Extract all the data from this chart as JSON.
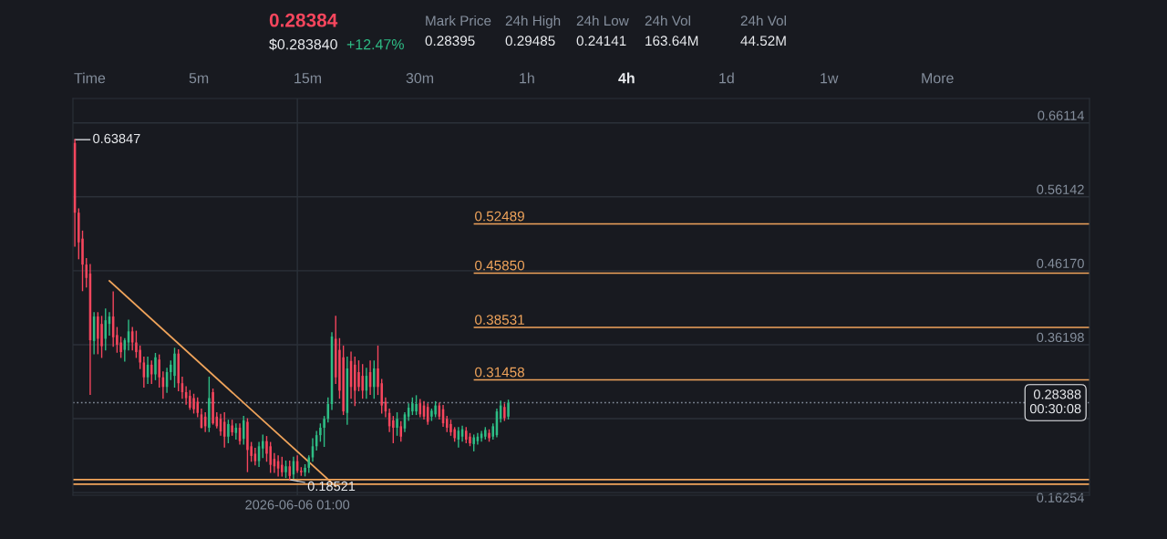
{
  "chart_data": {
    "type": "candlestick",
    "annotations": [
      "0.28384",
      "$0.283840",
      "+12.47%",
      "Mark Price",
      "0.28395",
      "24h High",
      "0.29485",
      "24h Low",
      "0.24141",
      "24h Vol",
      "163.64M",
      "24h Vol",
      "44.52M",
      "Time",
      "5m",
      "15m",
      "30m",
      "1h",
      "4h",
      "1d",
      "1w",
      "More",
      "0.63847",
      "0.18521"
    ],
    "categories": [
      null,
      null,
      null,
      null,
      null,
      null,
      null,
      null,
      null,
      null,
      null,
      null,
      null,
      null,
      null,
      null,
      null,
      null,
      null,
      null,
      null,
      null,
      null,
      null,
      null,
      null,
      null,
      null,
      null,
      null,
      null,
      null,
      null,
      null,
      null,
      null,
      null,
      null,
      null,
      null,
      null,
      null,
      null,
      null,
      null,
      null,
      null,
      null,
      null,
      null,
      null,
      null,
      null,
      null,
      null,
      null,
      null,
      null,
      "2026-06-06 01:00",
      null,
      null,
      null,
      null,
      null,
      null,
      null,
      null,
      null,
      null,
      null,
      null,
      null,
      null,
      null,
      null,
      null,
      null,
      null,
      null,
      null,
      null,
      null,
      null,
      null,
      null,
      null,
      null,
      null,
      null,
      null,
      null,
      null,
      null,
      null,
      null,
      null,
      null,
      null,
      null,
      null,
      null,
      null,
      null,
      null,
      null,
      null,
      null,
      null,
      null,
      null,
      null,
      null,
      null,
      null,
      null,
      null,
      null,
      null,
      null,
      null,
      null,
      null,
      null,
      null,
      null,
      null,
      null,
      null,
      null,
      null,
      null,
      null,
      null,
      null,
      null,
      null,
      null,
      null,
      null,
      null,
      null,
      null,
      null,
      null,
      null,
      null,
      null,
      null,
      null,
      null,
      null,
      null,
      null,
      null,
      null,
      null,
      null,
      null,
      null,
      null,
      null,
      null,
      null,
      null,
      null,
      null,
      null,
      null,
      null,
      null,
      null,
      null,
      null,
      null,
      null,
      null,
      null,
      null,
      null,
      null,
      null,
      null,
      null,
      null,
      null,
      null,
      null,
      null,
      null,
      null,
      null,
      null,
      null,
      null,
      null,
      null,
      null,
      null,
      null,
      null,
      null,
      null,
      null,
      null,
      null,
      null,
      null,
      null,
      null,
      null,
      null,
      null,
      null,
      null,
      null,
      null,
      null,
      null,
      null,
      null,
      null,
      null,
      null,
      null,
      null,
      null,
      null,
      null,
      null,
      null,
      null,
      null,
      null,
      null,
      null,
      null,
      null,
      null,
      null,
      null,
      null,
      null,
      null,
      null,
      null,
      null,
      null,
      null,
      null,
      null,
      null,
      null,
      null,
      null,
      null,
      null,
      null,
      null,
      null,
      null,
      null,
      null,
      null,
      null,
      null
    ],
    "ohlc": [
      [
        0.634,
        0.63847,
        0.495,
        0.54
      ],
      [
        0.54,
        0.545,
        0.478,
        0.5
      ],
      [
        0.505,
        0.515,
        0.435,
        0.47
      ],
      [
        0.47,
        0.478,
        0.44,
        0.452
      ],
      [
        0.458,
        0.47,
        0.295,
        0.368
      ],
      [
        0.367,
        0.405,
        0.35,
        0.4
      ],
      [
        0.4,
        0.405,
        0.35,
        0.37
      ],
      [
        0.39,
        0.4,
        0.345,
        0.36
      ],
      [
        0.37,
        0.41,
        0.355,
        0.395
      ],
      [
        0.39,
        0.405,
        0.375,
        0.4
      ],
      [
        0.4,
        0.433,
        0.36,
        0.372
      ],
      [
        0.375,
        0.385,
        0.352,
        0.362
      ],
      [
        0.365,
        0.372,
        0.345,
        0.352
      ],
      [
        0.355,
        0.37,
        0.34,
        0.368
      ],
      [
        0.365,
        0.395,
        0.355,
        0.38
      ],
      [
        0.38,
        0.385,
        0.355,
        0.365
      ],
      [
        0.365,
        0.38,
        0.345,
        0.352
      ],
      [
        0.355,
        0.36,
        0.33,
        0.338
      ],
      [
        0.338,
        0.345,
        0.305,
        0.318
      ],
      [
        0.318,
        0.345,
        0.31,
        0.335
      ],
      [
        0.335,
        0.34,
        0.31,
        0.322
      ],
      [
        0.322,
        0.35,
        0.315,
        0.345
      ],
      [
        0.342,
        0.348,
        0.305,
        0.318
      ],
      [
        0.318,
        0.325,
        0.29,
        0.305
      ],
      [
        0.305,
        0.33,
        0.298,
        0.325
      ],
      [
        0.325,
        0.34,
        0.315,
        0.335
      ],
      [
        0.32,
        0.357,
        0.305,
        0.35
      ],
      [
        0.35,
        0.355,
        0.3,
        0.31
      ],
      [
        0.31,
        0.318,
        0.29,
        0.298
      ],
      [
        0.298,
        0.305,
        0.282,
        0.29
      ],
      [
        0.293,
        0.3,
        0.275,
        0.277
      ],
      [
        0.29,
        0.295,
        0.27,
        0.275
      ],
      [
        0.285,
        0.29,
        0.265,
        0.27
      ],
      [
        0.268,
        0.275,
        0.25,
        0.25
      ],
      [
        0.265,
        0.27,
        0.245,
        0.252
      ],
      [
        0.25,
        0.318,
        0.245,
        0.29
      ],
      [
        0.298,
        0.302,
        0.255,
        0.256
      ],
      [
        0.265,
        0.27,
        0.25,
        0.252
      ],
      [
        0.262,
        0.268,
        0.24,
        0.245
      ],
      [
        0.258,
        0.27,
        0.224,
        0.238
      ],
      [
        0.238,
        0.26,
        0.23,
        0.255
      ],
      [
        0.253,
        0.26,
        0.24,
        0.244
      ],
      [
        0.243,
        0.255,
        0.235,
        0.25
      ],
      [
        0.25,
        0.255,
        0.228,
        0.232
      ],
      [
        0.235,
        0.265,
        0.228,
        0.26
      ],
      [
        0.258,
        0.262,
        0.191,
        0.22
      ],
      [
        0.225,
        0.23,
        0.205,
        0.212
      ],
      [
        0.215,
        0.222,
        0.2,
        0.205
      ],
      [
        0.205,
        0.23,
        0.198,
        0.225
      ],
      [
        0.222,
        0.24,
        0.21,
        0.232
      ],
      [
        0.232,
        0.238,
        0.205,
        0.215
      ],
      [
        0.225,
        0.23,
        0.19,
        0.2
      ],
      [
        0.208,
        0.215,
        0.19,
        0.198
      ],
      [
        0.205,
        0.212,
        0.185,
        0.195
      ],
      [
        0.2,
        0.21,
        0.185,
        0.19
      ],
      [
        0.19,
        0.205,
        0.183,
        0.198
      ],
      [
        0.198,
        0.205,
        0.18,
        0.185
      ],
      [
        0.187,
        0.21,
        0.182,
        0.205
      ],
      [
        0.205,
        0.212,
        0.19,
        0.192
      ],
      [
        0.192,
        0.196,
        0.186,
        0.19
      ],
      [
        0.19,
        0.2,
        0.18521,
        0.196
      ],
      [
        0.196,
        0.212,
        0.19,
        0.21
      ],
      [
        0.21,
        0.235,
        0.205,
        0.225
      ],
      [
        0.225,
        0.245,
        0.22,
        0.24
      ],
      [
        0.24,
        0.255,
        0.232,
        0.25
      ],
      [
        0.25,
        0.265,
        0.225,
        0.262
      ],
      [
        0.262,
        0.29,
        0.258,
        0.282
      ],
      [
        0.282,
        0.378,
        0.275,
        0.373
      ],
      [
        0.37,
        0.4,
        0.31,
        0.318
      ],
      [
        0.355,
        0.37,
        0.29,
        0.3
      ],
      [
        0.345,
        0.36,
        0.268,
        0.272
      ],
      [
        0.27,
        0.345,
        0.255,
        0.33
      ],
      [
        0.34,
        0.352,
        0.29,
        0.305
      ],
      [
        0.335,
        0.345,
        0.28,
        0.3
      ],
      [
        0.325,
        0.34,
        0.3,
        0.305
      ],
      [
        0.32,
        0.335,
        0.29,
        0.3
      ],
      [
        0.3,
        0.33,
        0.29,
        0.32
      ],
      [
        0.325,
        0.34,
        0.295,
        0.305
      ],
      [
        0.305,
        0.34,
        0.29,
        0.33
      ],
      [
        0.33,
        0.36,
        0.295,
        0.305
      ],
      [
        0.31,
        0.315,
        0.27,
        0.28
      ],
      [
        0.285,
        0.29,
        0.265,
        0.272
      ],
      [
        0.27,
        0.275,
        0.245,
        0.252
      ],
      [
        0.26,
        0.265,
        0.23,
        0.25
      ],
      [
        0.25,
        0.27,
        0.24,
        0.262
      ],
      [
        0.252,
        0.258,
        0.232,
        0.238
      ],
      [
        0.249,
        0.27,
        0.245,
        0.268
      ],
      [
        0.265,
        0.282,
        0.26,
        0.277
      ],
      [
        0.272,
        0.29,
        0.268,
        0.283
      ],
      [
        0.272,
        0.293,
        0.268,
        0.282
      ],
      [
        0.283,
        0.288,
        0.265,
        0.268
      ],
      [
        0.28,
        0.285,
        0.262,
        0.265
      ],
      [
        0.278,
        0.282,
        0.255,
        0.258
      ],
      [
        0.265,
        0.275,
        0.26,
        0.273
      ],
      [
        0.268,
        0.285,
        0.265,
        0.28
      ],
      [
        0.28,
        0.283,
        0.262,
        0.265
      ],
      [
        0.275,
        0.28,
        0.252,
        0.256
      ],
      [
        0.262,
        0.265,
        0.245,
        0.25
      ],
      [
        0.255,
        0.26,
        0.24,
        0.244
      ],
      [
        0.248,
        0.25,
        0.232,
        0.236
      ],
      [
        0.234,
        0.25,
        0.224,
        0.246
      ],
      [
        0.238,
        0.252,
        0.232,
        0.248
      ],
      [
        0.246,
        0.25,
        0.23,
        0.234
      ],
      [
        0.238,
        0.242,
        0.226,
        0.229
      ],
      [
        0.228,
        0.24,
        0.219,
        0.237
      ],
      [
        0.232,
        0.242,
        0.228,
        0.238
      ],
      [
        0.236,
        0.245,
        0.232,
        0.242
      ],
      [
        0.238,
        0.25,
        0.235,
        0.247
      ],
      [
        0.243,
        0.247,
        0.232,
        0.236
      ],
      [
        0.238,
        0.255,
        0.235,
        0.252
      ],
      [
        0.24,
        0.275,
        0.238,
        0.272
      ],
      [
        0.262,
        0.2857,
        0.258,
        0.28
      ],
      [
        0.278,
        0.282,
        0.26,
        0.263
      ],
      [
        0.265,
        0.287,
        0.262,
        0.28388
      ],
      null,
      null,
      null,
      null,
      null,
      null,
      null,
      null,
      null,
      null,
      null,
      null,
      null,
      null,
      null,
      null,
      null,
      null,
      null,
      null,
      null,
      null,
      null,
      null,
      null,
      null,
      null,
      null,
      null,
      null,
      null,
      null,
      null,
      null,
      null,
      null,
      null,
      null,
      null,
      null,
      null,
      null,
      null,
      null,
      null,
      null,
      null,
      null,
      null,
      null,
      null,
      null,
      null,
      null,
      null,
      null,
      null,
      null,
      null,
      null,
      null,
      null,
      null,
      null,
      null,
      null,
      null,
      null,
      null,
      null,
      null,
      null,
      null,
      null,
      null,
      null,
      null,
      null,
      null,
      null,
      null,
      null,
      null,
      null,
      null,
      null,
      null,
      null,
      null,
      null,
      null,
      null,
      null,
      null,
      null,
      null,
      null,
      null,
      null,
      null,
      null,
      null,
      null,
      null,
      null,
      null,
      null,
      null,
      null,
      null,
      null,
      null,
      null,
      null,
      null,
      null,
      null,
      null,
      null,
      null,
      null,
      null,
      null,
      null,
      null,
      null,
      null,
      null,
      null,
      null,
      null,
      null,
      null,
      null,
      null,
      null,
      null,
      null,
      null,
      null,
      null,
      null,
      null,
      null,
      null,
      null,
      null,
      null,
      null,
      null,
      null
    ],
    "series": [
      {
        "type": "line",
        "color": "#f0a45b",
        "values": [
          null,
          null,
          null,
          null,
          null,
          null,
          null,
          null,
          null,
          0.448,
          null,
          null,
          null,
          null,
          null,
          null,
          null,
          null,
          null,
          null,
          null,
          null,
          null,
          null,
          null,
          null,
          null,
          null,
          null,
          null,
          null,
          null,
          null,
          null,
          null,
          null,
          null,
          null,
          null,
          null,
          null,
          null,
          null,
          null,
          null,
          null,
          null,
          null,
          null,
          null,
          null,
          null,
          null,
          null,
          null,
          null,
          null,
          null,
          null,
          null,
          null,
          null,
          null,
          null,
          null,
          null,
          null,
          null,
          0.171,
          null,
          null,
          null,
          null,
          null,
          null,
          null,
          null,
          null,
          null,
          null,
          null,
          null,
          null,
          null,
          null,
          null,
          null,
          null,
          null,
          null,
          null,
          null,
          null,
          null,
          null,
          null,
          null,
          null,
          null,
          null,
          null,
          null,
          null,
          null,
          null,
          null,
          null,
          null,
          null,
          null,
          null,
          null,
          null,
          null,
          null,
          null,
          null,
          null,
          null,
          null,
          null,
          null,
          null,
          null,
          null,
          null,
          null,
          null,
          null,
          null,
          null,
          null,
          null,
          null,
          null,
          null,
          null,
          null,
          null,
          null,
          null,
          null,
          null,
          null,
          null,
          null,
          null,
          null,
          null,
          null,
          null,
          null,
          null,
          null,
          null,
          null,
          null,
          null,
          null,
          null,
          null,
          null,
          null,
          null,
          null,
          null,
          null,
          null,
          null,
          null,
          null,
          null,
          null,
          null,
          null,
          null,
          null,
          null,
          null,
          null,
          null,
          null,
          null,
          null,
          null,
          null,
          null,
          null,
          null,
          null,
          null,
          null,
          null,
          null,
          null,
          null,
          null,
          null,
          null,
          null,
          null,
          null,
          null,
          null,
          null,
          null,
          null,
          null,
          null,
          null,
          null,
          null,
          null,
          null,
          null,
          null,
          null,
          null,
          null,
          null,
          null,
          null,
          null,
          null,
          null,
          null,
          null,
          null,
          null,
          null,
          null,
          null,
          null,
          null,
          null,
          null,
          null,
          null,
          null,
          null,
          null,
          null,
          null,
          null,
          null,
          null,
          null,
          null,
          null,
          null,
          null,
          null,
          null,
          null,
          null,
          null,
          null,
          null,
          null,
          null,
          null,
          null,
          null,
          null,
          null
        ]
      }
    ],
    "ref_lines": [
      {
        "axis": "y",
        "value": 0.52489,
        "label": "0.52489",
        "color": "#f0a45b",
        "line_style": "solid"
      },
      {
        "axis": "y",
        "value": 0.4585,
        "label": "0.45850",
        "color": "#f0a45b",
        "line_style": "solid"
      },
      {
        "axis": "y",
        "value": 0.38531,
        "label": "0.38531",
        "color": "#f0a45b",
        "line_style": "solid"
      },
      {
        "axis": "y",
        "value": 0.31458,
        "label": "0.31458",
        "color": "#f0a45b",
        "line_style": "solid"
      },
      {
        "axis": "y",
        "value": 0.28388,
        "label": "0.28388\n00:30:08",
        "color": "#848e9c",
        "line_style": "dotted"
      },
      {
        "axis": "y",
        "value": 0.18,
        "color": "#f0a45b",
        "line_style": "solid"
      },
      {
        "axis": "y",
        "value": 0.174,
        "color": "#f0a45b",
        "line_style": "solid"
      }
    ],
    "ylim": [
      0.159,
      0.694
    ],
    "yticks": [
      0.16254,
      {
        "value": 0.26226,
        "label": null
      },
      0.36198,
      {
        "value": 0.4617,
        "label": "0.46170"
      },
      0.56142,
      0.66114
    ],
    "grid": true,
    "legend": false
  }
}
